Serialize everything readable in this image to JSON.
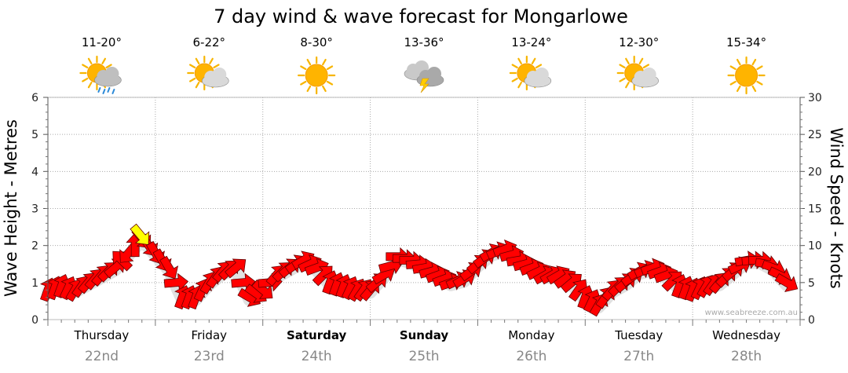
{
  "chart_data": {
    "type": "line",
    "title": "7 day wind & wave forecast for Mongarlowe",
    "ylabel_left": "Wave Height - Metres",
    "ylabel_right": "Wind Speed - Knots",
    "ylim_left": [
      0,
      6
    ],
    "ylim_right": [
      0,
      30
    ],
    "yticks_left": [
      "0",
      "1",
      "2",
      "3",
      "4",
      "5",
      "6"
    ],
    "yticks_right": [
      "0",
      "5",
      "10",
      "15",
      "20",
      "25",
      "30"
    ],
    "grid": true,
    "watermark": "www.seabreeze.com.au",
    "days": [
      {
        "name": "Thursday",
        "date": "22nd",
        "temp": "11-20°",
        "icon": "sun-cloud-rain-icon",
        "bold": false
      },
      {
        "name": "Friday",
        "date": "23rd",
        "temp": "6-22°",
        "icon": "sun-cloud-icon",
        "bold": false
      },
      {
        "name": "Saturday",
        "date": "24th",
        "temp": "8-30°",
        "icon": "sun-icon",
        "bold": true
      },
      {
        "name": "Sunday",
        "date": "25th",
        "temp": "13-36°",
        "icon": "storm-cloud-icon",
        "bold": true
      },
      {
        "name": "Monday",
        "date": "26th",
        "temp": "13-24°",
        "icon": "sun-cloud-icon",
        "bold": false
      },
      {
        "name": "Tuesday",
        "date": "27th",
        "temp": "12-30°",
        "icon": "sun-cloud-icon",
        "bold": false
      },
      {
        "name": "Wednesday",
        "date": "28th",
        "temp": "15-34°",
        "icon": "sun-icon",
        "bold": false
      }
    ],
    "series": [
      {
        "name": "Wind Speed",
        "unit": "knots",
        "x_hours": [
          0,
          3,
          6,
          9,
          12,
          15,
          18,
          21,
          24,
          27,
          30,
          33,
          36,
          39,
          42,
          45,
          48,
          51,
          54,
          57,
          60,
          63,
          66,
          69,
          72,
          75,
          78,
          81,
          84,
          87,
          90,
          93,
          96,
          99,
          102,
          105,
          108,
          111,
          114,
          117,
          120,
          123,
          126,
          129,
          132,
          135,
          138,
          141,
          144,
          147,
          150,
          153,
          156,
          159,
          162,
          165
        ],
        "values": [
          4,
          4.5,
          4,
          5,
          6,
          7,
          9,
          11,
          9,
          7,
          3,
          3,
          5,
          6.5,
          7,
          3,
          4,
          6,
          7,
          8,
          7,
          5,
          4.5,
          4,
          4,
          6,
          8.5,
          8,
          7,
          6,
          5,
          5.5,
          7.5,
          9,
          9.5,
          8,
          7,
          6,
          6,
          5,
          3,
          2,
          4,
          5,
          6.5,
          7,
          6,
          4.5,
          4,
          4.5,
          5,
          6.5,
          8,
          8,
          7,
          5
        ],
        "direction_deg": [
          200,
          200,
          210,
          220,
          220,
          230,
          40,
          320,
          330,
          330,
          200,
          200,
          210,
          220,
          230,
          300,
          310,
          220,
          230,
          240,
          250,
          200,
          200,
          210,
          220,
          240,
          270,
          270,
          260,
          250,
          250,
          240,
          230,
          240,
          250,
          260,
          250,
          240,
          240,
          230,
          200,
          210,
          220,
          230,
          240,
          250,
          250,
          200,
          200,
          210,
          220,
          230,
          260,
          270,
          290,
          300
        ],
        "color": "#ff0000",
        "gust_color": "#ffff00"
      }
    ]
  }
}
